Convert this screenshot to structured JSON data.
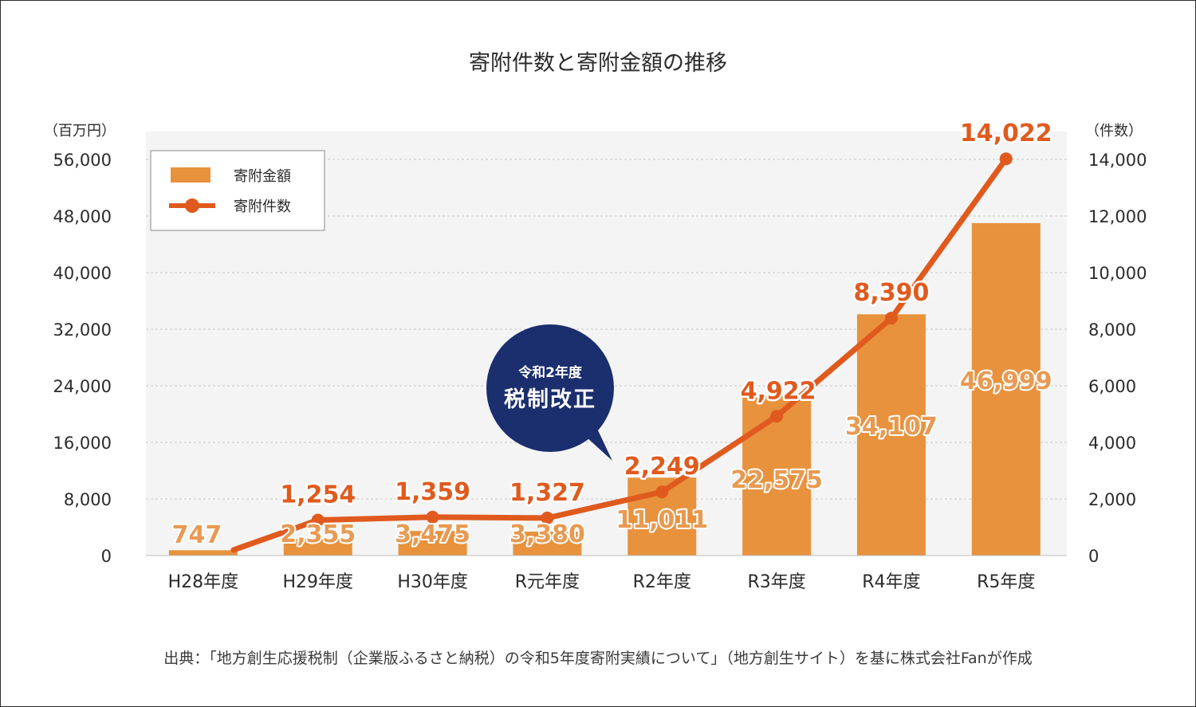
{
  "chart_data": {
    "type": "bar",
    "title": "寄附件数と寄附金額の推移",
    "left_unit": "（百万円）",
    "right_unit": "（件数）",
    "categories": [
      "H28年度",
      "H29年度",
      "H30年度",
      "R元年度",
      "R2年度",
      "R3年度",
      "R4年度",
      "R5年度"
    ],
    "series": [
      {
        "name": "寄附金額",
        "type": "bar",
        "axis": "left",
        "color": "#e8923d",
        "values": [
          747,
          2355,
          3475,
          3380,
          11011,
          22575,
          34107,
          46999
        ],
        "labels": [
          "747",
          "2,355",
          "3,475",
          "3,380",
          "11,011",
          "22,575",
          "34,107",
          "46,999"
        ]
      },
      {
        "name": "寄附件数",
        "type": "line",
        "axis": "right",
        "color": "#e05a1e",
        "values": [
          200,
          1254,
          1359,
          1327,
          2249,
          4922,
          8390,
          14022
        ],
        "labels": [
          "",
          "1,254",
          "1,359",
          "1,327",
          "2,249",
          "4,922",
          "8,390",
          "14,022"
        ]
      }
    ],
    "y_left": {
      "min": 0,
      "max": 56000,
      "ticks": [
        "0",
        "8,000",
        "16,000",
        "24,000",
        "32,000",
        "40,000",
        "48,000",
        "56,000"
      ]
    },
    "y_right": {
      "min": 0,
      "max": 14000,
      "ticks": [
        "0",
        "2,000",
        "4,000",
        "6,000",
        "8,000",
        "10,000",
        "12,000",
        "14,000"
      ]
    },
    "grid": true,
    "legend_position": "top-left",
    "annotation": {
      "line1": "令和2年度",
      "line2": "税制改正",
      "color": "#1b2e6e"
    }
  },
  "source_note": "出典：「地方創生応援税制（企業版ふるさと納税）の令和5年度寄附実績について」（地方創生サイト）を基に株式会社Fanが作成"
}
